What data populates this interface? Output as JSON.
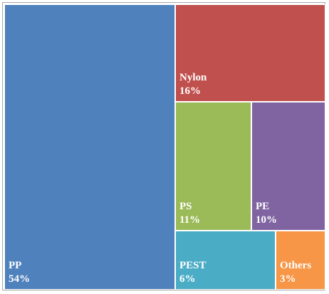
{
  "chart_data": {
    "type": "treemap",
    "items": [
      {
        "name": "PP",
        "value": 54,
        "label_name": "PP",
        "label_value": "54%",
        "color": "#4F81BD"
      },
      {
        "name": "Nylon",
        "value": 16,
        "label_name": "Nylon",
        "label_value": "16%",
        "color": "#C0504D"
      },
      {
        "name": "PS",
        "value": 11,
        "label_name": "PS",
        "label_value": "11%",
        "color": "#9BBB59"
      },
      {
        "name": "PE",
        "value": 10,
        "label_name": "PE",
        "label_value": "10%",
        "color": "#8064A2"
      },
      {
        "name": "PEST",
        "value": 6,
        "label_name": "PEST",
        "label_value": "6%",
        "color": "#4BACC6"
      },
      {
        "name": "Others",
        "value": 3,
        "label_name": "Others",
        "label_value": "3%",
        "color": "#F79646"
      }
    ]
  }
}
